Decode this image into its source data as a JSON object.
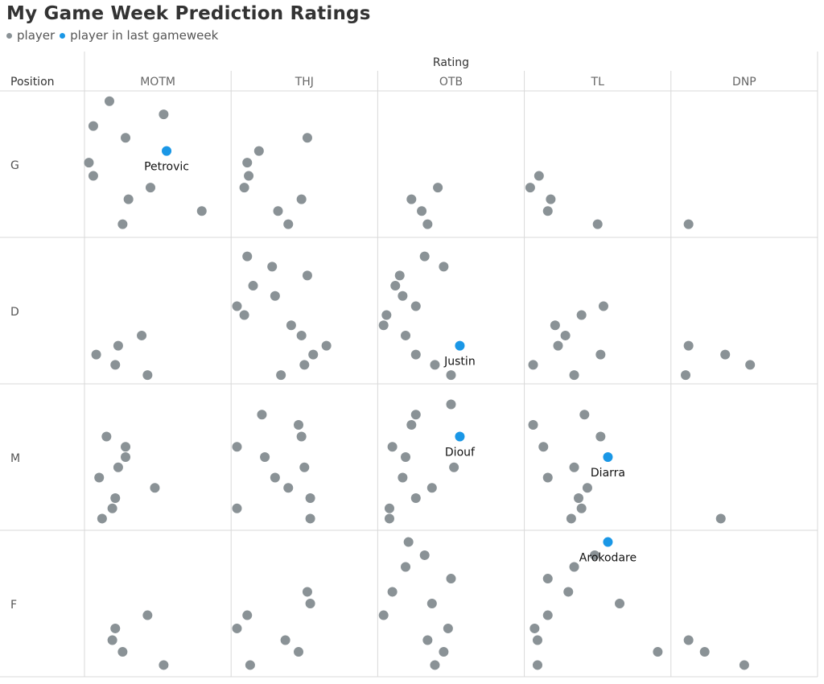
{
  "chart_data": {
    "type": "scatter",
    "title": "My Game Week Prediction Ratings",
    "legend": [
      {
        "label": "player",
        "color": "#8a9296"
      },
      {
        "label": "player in last gameweek",
        "color": "#1a97e6"
      }
    ],
    "column_header": "Rating",
    "row_header": "Position",
    "columns": [
      "MOTM",
      "THJ",
      "OTB",
      "TL",
      "DNP"
    ],
    "rows": [
      "G",
      "D",
      "M",
      "F"
    ],
    "colors": {
      "player": "#8a9296",
      "highlight": "#1a97e6"
    },
    "points": [
      {
        "row": "G",
        "col": "MOTM",
        "x": 0.17,
        "y": 0.07
      },
      {
        "row": "G",
        "col": "MOTM",
        "x": 0.54,
        "y": 0.16
      },
      {
        "row": "G",
        "col": "MOTM",
        "x": 0.06,
        "y": 0.24
      },
      {
        "row": "G",
        "col": "MOTM",
        "x": 0.28,
        "y": 0.32
      },
      {
        "row": "G",
        "col": "MOTM",
        "x": 0.03,
        "y": 0.49
      },
      {
        "row": "G",
        "col": "MOTM",
        "x": 0.06,
        "y": 0.58
      },
      {
        "row": "G",
        "col": "MOTM",
        "x": 0.45,
        "y": 0.66
      },
      {
        "row": "G",
        "col": "MOTM",
        "x": 0.3,
        "y": 0.74
      },
      {
        "row": "G",
        "col": "MOTM",
        "x": 0.8,
        "y": 0.82
      },
      {
        "row": "G",
        "col": "MOTM",
        "x": 0.26,
        "y": 0.91
      },
      {
        "row": "G",
        "col": "MOTM",
        "x": 0.56,
        "y": 0.41,
        "highlight": true,
        "label": "Petrovic"
      },
      {
        "row": "G",
        "col": "THJ",
        "x": 0.52,
        "y": 0.32
      },
      {
        "row": "G",
        "col": "THJ",
        "x": 0.19,
        "y": 0.41
      },
      {
        "row": "G",
        "col": "THJ",
        "x": 0.11,
        "y": 0.49
      },
      {
        "row": "G",
        "col": "THJ",
        "x": 0.12,
        "y": 0.58
      },
      {
        "row": "G",
        "col": "THJ",
        "x": 0.09,
        "y": 0.66
      },
      {
        "row": "G",
        "col": "THJ",
        "x": 0.48,
        "y": 0.74
      },
      {
        "row": "G",
        "col": "THJ",
        "x": 0.32,
        "y": 0.82
      },
      {
        "row": "G",
        "col": "THJ",
        "x": 0.39,
        "y": 0.91
      },
      {
        "row": "G",
        "col": "OTB",
        "x": 0.41,
        "y": 0.66
      },
      {
        "row": "G",
        "col": "OTB",
        "x": 0.23,
        "y": 0.74
      },
      {
        "row": "G",
        "col": "OTB",
        "x": 0.3,
        "y": 0.82
      },
      {
        "row": "G",
        "col": "OTB",
        "x": 0.34,
        "y": 0.91
      },
      {
        "row": "G",
        "col": "TL",
        "x": 0.1,
        "y": 0.58
      },
      {
        "row": "G",
        "col": "TL",
        "x": 0.04,
        "y": 0.66
      },
      {
        "row": "G",
        "col": "TL",
        "x": 0.18,
        "y": 0.74
      },
      {
        "row": "G",
        "col": "TL",
        "x": 0.16,
        "y": 0.82
      },
      {
        "row": "G",
        "col": "TL",
        "x": 0.5,
        "y": 0.91
      },
      {
        "row": "G",
        "col": "DNP",
        "x": 0.12,
        "y": 0.91
      },
      {
        "row": "D",
        "col": "THJ",
        "x": 0.11,
        "y": 0.13
      },
      {
        "row": "D",
        "col": "THJ",
        "x": 0.28,
        "y": 0.2
      },
      {
        "row": "D",
        "col": "THJ",
        "x": 0.52,
        "y": 0.26
      },
      {
        "row": "D",
        "col": "THJ",
        "x": 0.15,
        "y": 0.33
      },
      {
        "row": "D",
        "col": "THJ",
        "x": 0.3,
        "y": 0.4
      },
      {
        "row": "D",
        "col": "THJ",
        "x": 0.04,
        "y": 0.47
      },
      {
        "row": "D",
        "col": "THJ",
        "x": 0.09,
        "y": 0.53
      },
      {
        "row": "D",
        "col": "THJ",
        "x": 0.41,
        "y": 0.6
      },
      {
        "row": "D",
        "col": "THJ",
        "x": 0.48,
        "y": 0.67
      },
      {
        "row": "D",
        "col": "THJ",
        "x": 0.65,
        "y": 0.74
      },
      {
        "row": "D",
        "col": "THJ",
        "x": 0.56,
        "y": 0.8
      },
      {
        "row": "D",
        "col": "THJ",
        "x": 0.5,
        "y": 0.87
      },
      {
        "row": "D",
        "col": "THJ",
        "x": 0.34,
        "y": 0.94
      },
      {
        "row": "D",
        "col": "OTB",
        "x": 0.32,
        "y": 0.13
      },
      {
        "row": "D",
        "col": "OTB",
        "x": 0.45,
        "y": 0.2
      },
      {
        "row": "D",
        "col": "OTB",
        "x": 0.15,
        "y": 0.26
      },
      {
        "row": "D",
        "col": "OTB",
        "x": 0.12,
        "y": 0.33
      },
      {
        "row": "D",
        "col": "OTB",
        "x": 0.17,
        "y": 0.4
      },
      {
        "row": "D",
        "col": "OTB",
        "x": 0.26,
        "y": 0.47
      },
      {
        "row": "D",
        "col": "OTB",
        "x": 0.06,
        "y": 0.53
      },
      {
        "row": "D",
        "col": "OTB",
        "x": 0.04,
        "y": 0.6
      },
      {
        "row": "D",
        "col": "OTB",
        "x": 0.19,
        "y": 0.67
      },
      {
        "row": "D",
        "col": "OTB",
        "x": 0.26,
        "y": 0.8
      },
      {
        "row": "D",
        "col": "OTB",
        "x": 0.39,
        "y": 0.87
      },
      {
        "row": "D",
        "col": "OTB",
        "x": 0.5,
        "y": 0.94
      },
      {
        "row": "D",
        "col": "OTB",
        "x": 0.56,
        "y": 0.74,
        "highlight": true,
        "label": "Justin"
      },
      {
        "row": "D",
        "col": "MOTM",
        "x": 0.39,
        "y": 0.67
      },
      {
        "row": "D",
        "col": "MOTM",
        "x": 0.23,
        "y": 0.74
      },
      {
        "row": "D",
        "col": "MOTM",
        "x": 0.08,
        "y": 0.8
      },
      {
        "row": "D",
        "col": "MOTM",
        "x": 0.21,
        "y": 0.87
      },
      {
        "row": "D",
        "col": "MOTM",
        "x": 0.43,
        "y": 0.94
      },
      {
        "row": "D",
        "col": "TL",
        "x": 0.54,
        "y": 0.47
      },
      {
        "row": "D",
        "col": "TL",
        "x": 0.39,
        "y": 0.53
      },
      {
        "row": "D",
        "col": "TL",
        "x": 0.21,
        "y": 0.6
      },
      {
        "row": "D",
        "col": "TL",
        "x": 0.28,
        "y": 0.67
      },
      {
        "row": "D",
        "col": "TL",
        "x": 0.23,
        "y": 0.74
      },
      {
        "row": "D",
        "col": "TL",
        "x": 0.52,
        "y": 0.8
      },
      {
        "row": "D",
        "col": "TL",
        "x": 0.06,
        "y": 0.87
      },
      {
        "row": "D",
        "col": "TL",
        "x": 0.34,
        "y": 0.94
      },
      {
        "row": "D",
        "col": "DNP",
        "x": 0.12,
        "y": 0.74
      },
      {
        "row": "D",
        "col": "DNP",
        "x": 0.37,
        "y": 0.8
      },
      {
        "row": "D",
        "col": "DNP",
        "x": 0.54,
        "y": 0.87
      },
      {
        "row": "D",
        "col": "DNP",
        "x": 0.1,
        "y": 0.94
      },
      {
        "row": "M",
        "col": "MOTM",
        "x": 0.15,
        "y": 0.36
      },
      {
        "row": "M",
        "col": "MOTM",
        "x": 0.28,
        "y": 0.43
      },
      {
        "row": "M",
        "col": "MOTM",
        "x": 0.28,
        "y": 0.5
      },
      {
        "row": "M",
        "col": "MOTM",
        "x": 0.23,
        "y": 0.57
      },
      {
        "row": "M",
        "col": "MOTM",
        "x": 0.1,
        "y": 0.64
      },
      {
        "row": "M",
        "col": "MOTM",
        "x": 0.48,
        "y": 0.71
      },
      {
        "row": "M",
        "col": "MOTM",
        "x": 0.21,
        "y": 0.78
      },
      {
        "row": "M",
        "col": "MOTM",
        "x": 0.19,
        "y": 0.85
      },
      {
        "row": "M",
        "col": "MOTM",
        "x": 0.12,
        "y": 0.92
      },
      {
        "row": "M",
        "col": "THJ",
        "x": 0.21,
        "y": 0.21
      },
      {
        "row": "M",
        "col": "THJ",
        "x": 0.46,
        "y": 0.28
      },
      {
        "row": "M",
        "col": "THJ",
        "x": 0.48,
        "y": 0.36
      },
      {
        "row": "M",
        "col": "THJ",
        "x": 0.04,
        "y": 0.43
      },
      {
        "row": "M",
        "col": "THJ",
        "x": 0.23,
        "y": 0.5
      },
      {
        "row": "M",
        "col": "THJ",
        "x": 0.5,
        "y": 0.57
      },
      {
        "row": "M",
        "col": "THJ",
        "x": 0.3,
        "y": 0.64
      },
      {
        "row": "M",
        "col": "THJ",
        "x": 0.39,
        "y": 0.71
      },
      {
        "row": "M",
        "col": "THJ",
        "x": 0.54,
        "y": 0.78
      },
      {
        "row": "M",
        "col": "THJ",
        "x": 0.04,
        "y": 0.85
      },
      {
        "row": "M",
        "col": "THJ",
        "x": 0.54,
        "y": 0.92
      },
      {
        "row": "M",
        "col": "OTB",
        "x": 0.5,
        "y": 0.14
      },
      {
        "row": "M",
        "col": "OTB",
        "x": 0.26,
        "y": 0.21
      },
      {
        "row": "M",
        "col": "OTB",
        "x": 0.23,
        "y": 0.28
      },
      {
        "row": "M",
        "col": "OTB",
        "x": 0.1,
        "y": 0.43
      },
      {
        "row": "M",
        "col": "OTB",
        "x": 0.19,
        "y": 0.5
      },
      {
        "row": "M",
        "col": "OTB",
        "x": 0.52,
        "y": 0.57
      },
      {
        "row": "M",
        "col": "OTB",
        "x": 0.17,
        "y": 0.64
      },
      {
        "row": "M",
        "col": "OTB",
        "x": 0.37,
        "y": 0.71
      },
      {
        "row": "M",
        "col": "OTB",
        "x": 0.26,
        "y": 0.78
      },
      {
        "row": "M",
        "col": "OTB",
        "x": 0.08,
        "y": 0.85
      },
      {
        "row": "M",
        "col": "OTB",
        "x": 0.08,
        "y": 0.92
      },
      {
        "row": "M",
        "col": "OTB",
        "x": 0.56,
        "y": 0.36,
        "highlight": true,
        "label": "Diouf"
      },
      {
        "row": "M",
        "col": "TL",
        "x": 0.41,
        "y": 0.21
      },
      {
        "row": "M",
        "col": "TL",
        "x": 0.06,
        "y": 0.28
      },
      {
        "row": "M",
        "col": "TL",
        "x": 0.52,
        "y": 0.36
      },
      {
        "row": "M",
        "col": "TL",
        "x": 0.13,
        "y": 0.43
      },
      {
        "row": "M",
        "col": "TL",
        "x": 0.34,
        "y": 0.57
      },
      {
        "row": "M",
        "col": "TL",
        "x": 0.16,
        "y": 0.64
      },
      {
        "row": "M",
        "col": "TL",
        "x": 0.43,
        "y": 0.71
      },
      {
        "row": "M",
        "col": "TL",
        "x": 0.37,
        "y": 0.78
      },
      {
        "row": "M",
        "col": "TL",
        "x": 0.39,
        "y": 0.85
      },
      {
        "row": "M",
        "col": "TL",
        "x": 0.32,
        "y": 0.92
      },
      {
        "row": "M",
        "col": "TL",
        "x": 0.57,
        "y": 0.5,
        "highlight": true,
        "label": "Diarra"
      },
      {
        "row": "M",
        "col": "DNP",
        "x": 0.34,
        "y": 0.92
      },
      {
        "row": "F",
        "col": "MOTM",
        "x": 0.43,
        "y": 0.58
      },
      {
        "row": "F",
        "col": "MOTM",
        "x": 0.21,
        "y": 0.67
      },
      {
        "row": "F",
        "col": "MOTM",
        "x": 0.19,
        "y": 0.75
      },
      {
        "row": "F",
        "col": "MOTM",
        "x": 0.26,
        "y": 0.83
      },
      {
        "row": "F",
        "col": "MOTM",
        "x": 0.54,
        "y": 0.92
      },
      {
        "row": "F",
        "col": "THJ",
        "x": 0.52,
        "y": 0.42
      },
      {
        "row": "F",
        "col": "THJ",
        "x": 0.54,
        "y": 0.5
      },
      {
        "row": "F",
        "col": "THJ",
        "x": 0.11,
        "y": 0.58
      },
      {
        "row": "F",
        "col": "THJ",
        "x": 0.04,
        "y": 0.67
      },
      {
        "row": "F",
        "col": "THJ",
        "x": 0.37,
        "y": 0.75
      },
      {
        "row": "F",
        "col": "THJ",
        "x": 0.46,
        "y": 0.83
      },
      {
        "row": "F",
        "col": "THJ",
        "x": 0.13,
        "y": 0.92
      },
      {
        "row": "F",
        "col": "OTB",
        "x": 0.21,
        "y": 0.08
      },
      {
        "row": "F",
        "col": "OTB",
        "x": 0.32,
        "y": 0.17
      },
      {
        "row": "F",
        "col": "OTB",
        "x": 0.19,
        "y": 0.25
      },
      {
        "row": "F",
        "col": "OTB",
        "x": 0.5,
        "y": 0.33
      },
      {
        "row": "F",
        "col": "OTB",
        "x": 0.1,
        "y": 0.42
      },
      {
        "row": "F",
        "col": "OTB",
        "x": 0.37,
        "y": 0.5
      },
      {
        "row": "F",
        "col": "OTB",
        "x": 0.04,
        "y": 0.58
      },
      {
        "row": "F",
        "col": "OTB",
        "x": 0.48,
        "y": 0.67
      },
      {
        "row": "F",
        "col": "OTB",
        "x": 0.34,
        "y": 0.75
      },
      {
        "row": "F",
        "col": "OTB",
        "x": 0.45,
        "y": 0.83
      },
      {
        "row": "F",
        "col": "OTB",
        "x": 0.39,
        "y": 0.92
      },
      {
        "row": "F",
        "col": "TL",
        "x": 0.48,
        "y": 0.17
      },
      {
        "row": "F",
        "col": "TL",
        "x": 0.34,
        "y": 0.25
      },
      {
        "row": "F",
        "col": "TL",
        "x": 0.16,
        "y": 0.33
      },
      {
        "row": "F",
        "col": "TL",
        "x": 0.3,
        "y": 0.42
      },
      {
        "row": "F",
        "col": "TL",
        "x": 0.65,
        "y": 0.5
      },
      {
        "row": "F",
        "col": "TL",
        "x": 0.16,
        "y": 0.58
      },
      {
        "row": "F",
        "col": "TL",
        "x": 0.07,
        "y": 0.67
      },
      {
        "row": "F",
        "col": "TL",
        "x": 0.09,
        "y": 0.75
      },
      {
        "row": "F",
        "col": "TL",
        "x": 0.91,
        "y": 0.83
      },
      {
        "row": "F",
        "col": "TL",
        "x": 0.09,
        "y": 0.92
      },
      {
        "row": "F",
        "col": "TL",
        "x": 0.57,
        "y": 0.08,
        "highlight": true,
        "label": "Arokodare"
      },
      {
        "row": "F",
        "col": "DNP",
        "x": 0.12,
        "y": 0.75
      },
      {
        "row": "F",
        "col": "DNP",
        "x": 0.23,
        "y": 0.83
      },
      {
        "row": "F",
        "col": "DNP",
        "x": 0.5,
        "y": 0.92
      }
    ]
  }
}
